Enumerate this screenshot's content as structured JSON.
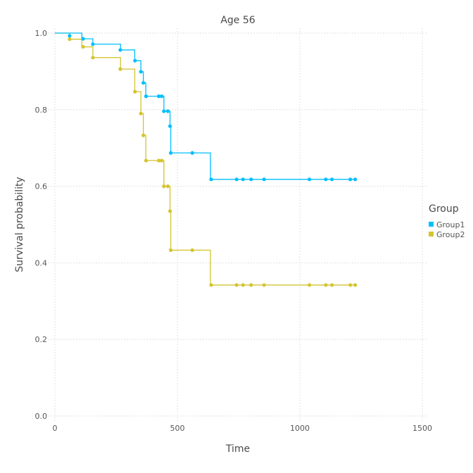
{
  "chart_data": {
    "type": "line",
    "title": "Age 56",
    "xlabel": "Time",
    "ylabel": "Survival probability",
    "xlim": [
      0,
      1500
    ],
    "ylim": [
      0,
      1
    ],
    "xticks": [
      0,
      500,
      1000,
      1500
    ],
    "yticks": [
      0.0,
      0.2,
      0.4,
      0.6,
      0.8,
      1.0
    ],
    "ytick_labels": [
      "0.0",
      "0.2",
      "0.4",
      "0.6",
      "0.8",
      "1.0"
    ],
    "grid": true,
    "legend": {
      "title": "Group",
      "placement": "right"
    },
    "series": [
      {
        "name": "Group1",
        "color": "#00BFFF",
        "steps": [
          [
            0,
            1.0
          ],
          [
            110,
            0.985
          ],
          [
            155,
            0.971
          ],
          [
            268,
            0.956
          ],
          [
            326,
            0.928
          ],
          [
            351,
            0.899
          ],
          [
            361,
            0.87
          ],
          [
            371,
            0.835
          ],
          [
            445,
            0.796
          ],
          [
            470,
            0.757
          ],
          [
            473,
            0.687
          ],
          [
            635,
            0.618
          ],
          [
            1230,
            0.618
          ]
        ],
        "points": [
          [
            60,
            0.993
          ],
          [
            115,
            0.985
          ],
          [
            155,
            0.971
          ],
          [
            267,
            0.956
          ],
          [
            327,
            0.928
          ],
          [
            351,
            0.899
          ],
          [
            361,
            0.87
          ],
          [
            372,
            0.835
          ],
          [
            424,
            0.835
          ],
          [
            436,
            0.835
          ],
          [
            445,
            0.796
          ],
          [
            461,
            0.796
          ],
          [
            470,
            0.757
          ],
          [
            473,
            0.687
          ],
          [
            561,
            0.687
          ],
          [
            638,
            0.618
          ],
          [
            742,
            0.618
          ],
          [
            768,
            0.618
          ],
          [
            801,
            0.618
          ],
          [
            854,
            0.618
          ],
          [
            1039,
            0.618
          ],
          [
            1106,
            0.618
          ],
          [
            1131,
            0.618
          ],
          [
            1206,
            0.618
          ],
          [
            1226,
            0.618
          ]
        ]
      },
      {
        "name": "Group2",
        "color": "#D4C431",
        "steps": [
          [
            0,
            1.0
          ],
          [
            60,
            0.984
          ],
          [
            110,
            0.964
          ],
          [
            155,
            0.936
          ],
          [
            268,
            0.906
          ],
          [
            326,
            0.847
          ],
          [
            351,
            0.79
          ],
          [
            361,
            0.733
          ],
          [
            371,
            0.667
          ],
          [
            445,
            0.6
          ],
          [
            470,
            0.535
          ],
          [
            473,
            0.433
          ],
          [
            635,
            0.342
          ],
          [
            1230,
            0.342
          ]
        ],
        "points": [
          [
            60,
            0.984
          ],
          [
            115,
            0.964
          ],
          [
            155,
            0.936
          ],
          [
            267,
            0.906
          ],
          [
            327,
            0.847
          ],
          [
            351,
            0.79
          ],
          [
            361,
            0.733
          ],
          [
            372,
            0.667
          ],
          [
            424,
            0.667
          ],
          [
            436,
            0.667
          ],
          [
            445,
            0.6
          ],
          [
            461,
            0.6
          ],
          [
            470,
            0.535
          ],
          [
            473,
            0.433
          ],
          [
            561,
            0.433
          ],
          [
            638,
            0.342
          ],
          [
            742,
            0.342
          ],
          [
            768,
            0.342
          ],
          [
            801,
            0.342
          ],
          [
            854,
            0.342
          ],
          [
            1039,
            0.342
          ],
          [
            1106,
            0.342
          ],
          [
            1131,
            0.342
          ],
          [
            1206,
            0.342
          ],
          [
            1226,
            0.342
          ]
        ]
      }
    ]
  }
}
